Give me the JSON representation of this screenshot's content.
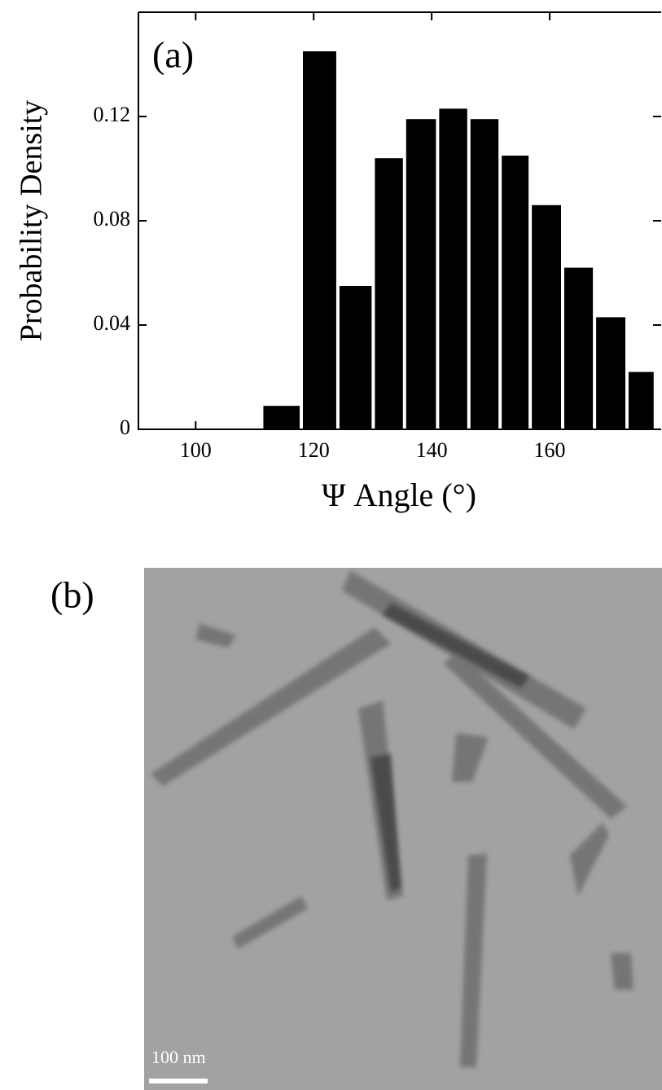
{
  "chart_data": {
    "type": "histogram",
    "panel_label": "(a)",
    "x_label": "Ψ Angle (°)",
    "y_label": "Probability Density",
    "bins": [
      111.2,
      117.9,
      124.1,
      130.1,
      135.4,
      141.0,
      146.3,
      151.6,
      156.7,
      162.2,
      167.6,
      173.1,
      177.9
    ],
    "values": [
      0.009,
      0.145,
      0.055,
      0.104,
      0.119,
      0.123,
      0.119,
      0.105,
      0.086,
      0.062,
      0.043,
      0.022
    ],
    "color": "#000000",
    "xlim": [
      90.3,
      178.9
    ],
    "xticks": [
      100,
      120,
      140,
      160
    ],
    "ylim": [
      0,
      0.16
    ],
    "yticks": [
      0,
      0.04,
      0.08,
      0.12
    ]
  },
  "image_panel": {
    "panel_label": "(b)",
    "scale_bar": "100 nm"
  }
}
